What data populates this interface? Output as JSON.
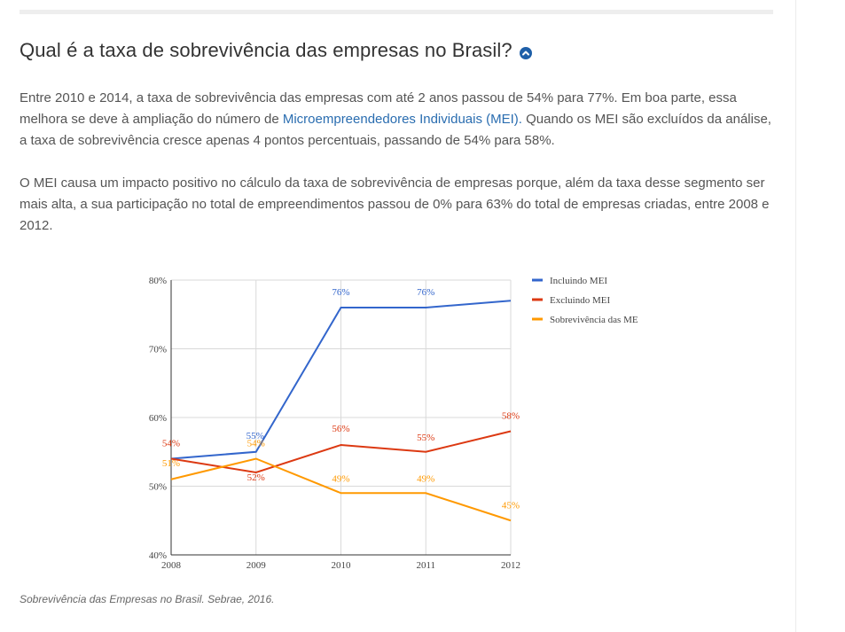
{
  "header": {
    "title": "Qual é a taxa de sobrevivência das empresas no Brasil?",
    "toggle_icon": "chevron-up-icon"
  },
  "article": {
    "p1_before": "Entre 2010 e 2014, a taxa de sobrevivência das empresas com até 2 anos passou de 54% para 77%. Em boa parte, essa melhora se deve à ampliação do número de ",
    "p1_link": "Microempreendedores Individuais (MEI).",
    "p1_after": " Quando os MEI são excluídos da análise, a taxa de sobrevivência cresce apenas 4 pontos percentuais, passando de 54% para 58%.",
    "p2": "O MEI causa um impacto positivo no cálculo da taxa de sobrevivência de empresas porque, além da taxa desse segmento ser mais alta, a sua participação no total de empreendimentos passou de 0% para 63% do total de empresas criadas, entre 2008 e 2012."
  },
  "caption": "Sobrevivência das Empresas no Brasil. Sebrae, 2016.",
  "colors": {
    "link": "#2a6db0",
    "accent": "#1e5fa8"
  },
  "chart_data": {
    "type": "line",
    "title": "",
    "xlabel": "",
    "ylabel": "",
    "categories": [
      "2008",
      "2009",
      "2010",
      "2011",
      "2012"
    ],
    "ylim": [
      40,
      80
    ],
    "yticks": [
      40,
      50,
      60,
      70,
      80
    ],
    "ytick_labels": [
      "40%",
      "50%",
      "60%",
      "70%",
      "80%"
    ],
    "grid": true,
    "legend_position": "right",
    "series": [
      {
        "name": "Incluindo MEI",
        "color": "#3366cc",
        "values": [
          54,
          55,
          76,
          76,
          77
        ],
        "labels": [
          "",
          "55%",
          "76%",
          "76%",
          ""
        ]
      },
      {
        "name": "Excluindo MEI",
        "color": "#dc3912",
        "values": [
          54,
          52,
          56,
          55,
          58
        ],
        "labels": [
          "54%",
          "52%",
          "56%",
          "55%",
          "58%"
        ]
      },
      {
        "name": "Sobrevivência das ME",
        "color": "#ff9900",
        "values": [
          51,
          54,
          49,
          49,
          45
        ],
        "labels": [
          "51%",
          "54%",
          "49%",
          "49%",
          "45%"
        ]
      }
    ]
  }
}
